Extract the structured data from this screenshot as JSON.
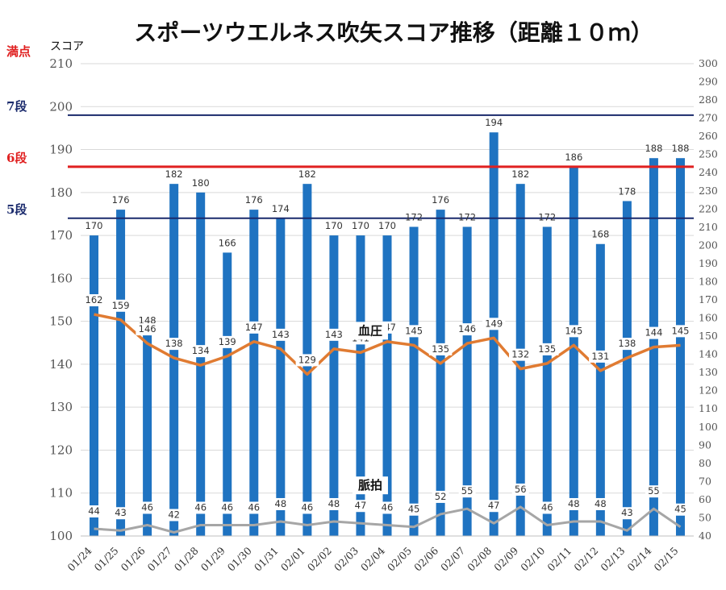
{
  "chart_data": {
    "type": "bar",
    "title": "スポーツウエルネス吹矢スコア推移（距離１０ｍ）",
    "ylabel": "スコア",
    "ylim": [
      100,
      210
    ],
    "yticks": [
      100,
      110,
      120,
      130,
      140,
      150,
      160,
      170,
      180,
      190,
      200,
      210
    ],
    "y2lim": [
      40,
      300
    ],
    "y2ticks": [
      40,
      50,
      60,
      70,
      80,
      90,
      100,
      110,
      120,
      130,
      140,
      150,
      160,
      170,
      180,
      190,
      200,
      210,
      220,
      230,
      240,
      250,
      260,
      270,
      280,
      290,
      300
    ],
    "categories": [
      "01/24",
      "01/25",
      "01/26",
      "01/27",
      "01/28",
      "01/29",
      "01/30",
      "01/31",
      "02/01",
      "02/02",
      "02/03",
      "02/04",
      "02/05",
      "02/06",
      "02/07",
      "02/08",
      "02/09",
      "02/10",
      "02/11",
      "02/12",
      "02/13",
      "02/14",
      "02/15"
    ],
    "reference_lines": [
      {
        "label": "満点",
        "value": 210,
        "color": "#e02020",
        "line": false
      },
      {
        "label": "7段",
        "value": 198,
        "color": "#1a2a6c",
        "line": true
      },
      {
        "label": "6段",
        "value": 186,
        "color": "#e02020",
        "line": true
      },
      {
        "label": "5段",
        "value": 174,
        "color": "#1a2a6c",
        "line": true
      }
    ],
    "series": [
      {
        "type": "bar",
        "axis": "left",
        "color": "#1f73c1",
        "values": [
          170,
          176,
          148,
          182,
          180,
          166,
          176,
          174,
          182,
          170,
          170,
          170,
          172,
          176,
          172,
          194,
          182,
          172,
          186,
          168,
          178,
          188,
          188
        ]
      },
      {
        "name": "血圧",
        "type": "line",
        "axis": "right",
        "color": "#e07b32",
        "values": [
          162,
          159,
          146,
          138,
          134,
          139,
          147,
          143,
          129,
          143,
          141,
          147,
          145,
          135,
          146,
          149,
          132,
          135,
          145,
          131,
          138,
          144,
          145
        ]
      },
      {
        "name": "脈拍",
        "type": "line",
        "axis": "right",
        "color": "#a6a6a6",
        "values": [
          44,
          43,
          46,
          42,
          46,
          46,
          46,
          48,
          46,
          48,
          47,
          46,
          45,
          52,
          55,
          47,
          56,
          46,
          48,
          48,
          43,
          55,
          45
        ]
      }
    ]
  }
}
